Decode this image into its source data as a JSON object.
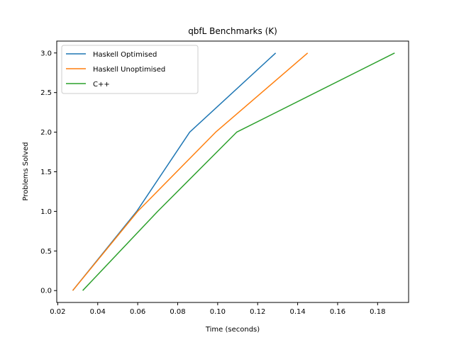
{
  "chart_data": {
    "type": "line",
    "title": "qbfL Benchmarks (K)",
    "xlabel": "Time (seconds)",
    "ylabel": "Problems Solved",
    "xlim": [
      0.0195,
      0.1955
    ],
    "ylim": [
      -0.15,
      3.15
    ],
    "xticks": [
      0.02,
      0.04,
      0.06,
      0.08,
      0.1,
      0.12,
      0.14,
      0.16,
      0.18
    ],
    "xtick_labels": [
      "0.02",
      "0.04",
      "0.06",
      "0.08",
      "0.10",
      "0.12",
      "0.14",
      "0.16",
      "0.18"
    ],
    "yticks": [
      0.0,
      0.5,
      1.0,
      1.5,
      2.0,
      2.5,
      3.0
    ],
    "ytick_labels": [
      "0.0",
      "0.5",
      "1.0",
      "1.5",
      "2.0",
      "2.5",
      "3.0"
    ],
    "grid": false,
    "legend_position": "top-left",
    "series": [
      {
        "name": "Haskell Optimised",
        "color": "#1f77b4",
        "x": [
          0.0275,
          0.0595,
          0.086,
          0.129
        ],
        "y": [
          0,
          1,
          2,
          3
        ]
      },
      {
        "name": "Haskell Unoptimised",
        "color": "#ff7f0e",
        "x": [
          0.0275,
          0.06,
          0.099,
          0.145
        ],
        "y": [
          0,
          1,
          2,
          3
        ]
      },
      {
        "name": "C++",
        "color": "#2ca02c",
        "x": [
          0.0325,
          0.07,
          0.1095,
          0.1885
        ],
        "y": [
          0,
          1,
          2,
          3
        ]
      }
    ]
  }
}
